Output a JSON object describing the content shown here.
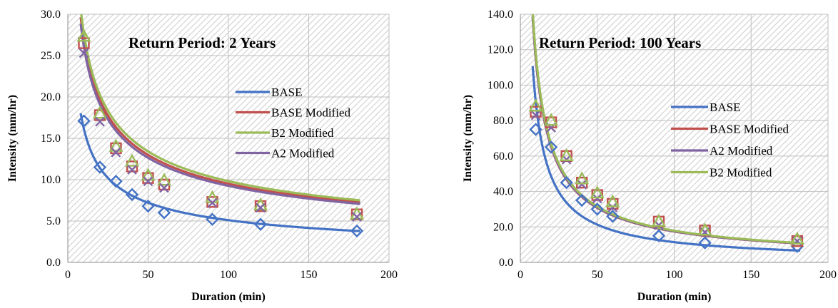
{
  "chart_data": [
    {
      "type": "scatter",
      "title": "Return Period: 2 Years",
      "xlabel": "Duration (min)",
      "ylabel": "Intensity (mm/hr)",
      "xlim": [
        0,
        200
      ],
      "ylim": [
        0,
        30
      ],
      "xticks": [
        "0",
        "50",
        "100",
        "150",
        "200"
      ],
      "yticks": [
        "0.0",
        "5.0",
        "10.0",
        "15.0",
        "20.0",
        "25.0",
        "30.0"
      ],
      "grid": true,
      "legend_position": "right",
      "x": [
        10,
        20,
        30,
        40,
        50,
        60,
        90,
        120,
        180
      ],
      "series": [
        {
          "name": "BASE",
          "color": "#4472C4",
          "marker": "diamond",
          "values": [
            17.1,
            11.5,
            9.8,
            8.2,
            6.8,
            6.0,
            5.2,
            4.6,
            3.8
          ],
          "trend": {
            "a": 51.0,
            "b": 0.5
          }
        },
        {
          "name": "BASE Modified",
          "color": "#C0504D",
          "marker": "square",
          "values": [
            26.5,
            17.8,
            13.8,
            11.6,
            10.2,
            9.4,
            7.3,
            6.8,
            5.8
          ],
          "trend": {
            "a": 75.5,
            "b": 0.45
          }
        },
        {
          "name": "B2 Modified",
          "color": "#9BBB59",
          "marker": "triangle",
          "values": [
            27.3,
            18.0,
            14.0,
            12.2,
            10.5,
            9.9,
            7.8,
            6.9,
            5.8
          ],
          "trend": {
            "a": 78.0,
            "b": 0.45
          }
        },
        {
          "name": "A2 Modified",
          "color": "#8064A2",
          "marker": "x",
          "values": [
            25.3,
            17.0,
            13.3,
            11.2,
            9.8,
            9.0,
            7.2,
            6.6,
            5.5
          ],
          "trend": {
            "a": 73.5,
            "b": 0.45
          }
        }
      ]
    },
    {
      "type": "scatter",
      "title": "Return Period: 100 Years",
      "xlabel": "Duration (min)",
      "ylabel": "Intensity (mm/hr)",
      "xlim": [
        0,
        200
      ],
      "ylim": [
        0,
        140
      ],
      "xticks": [
        "0",
        "50",
        "100",
        "150",
        "200"
      ],
      "yticks": [
        "0.0",
        "20.0",
        "40.0",
        "60.0",
        "80.0",
        "100.0",
        "120.0",
        "140.0"
      ],
      "grid": true,
      "legend_position": "right",
      "x": [
        10,
        20,
        30,
        40,
        50,
        60,
        90,
        120,
        180
      ],
      "series": [
        {
          "name": "BASE",
          "color": "#4472C4",
          "marker": "diamond",
          "values": [
            75,
            65,
            45,
            35,
            30,
            26,
            15,
            11,
            9
          ],
          "trend": {
            "a": 720,
            "b": 0.9
          }
        },
        {
          "name": "BASE Modified",
          "color": "#C0504D",
          "marker": "square",
          "values": [
            85,
            79,
            60,
            45,
            38,
            33,
            23,
            18,
            12
          ],
          "trend": {
            "a": 760,
            "b": 0.82
          }
        },
        {
          "name": "A2 Modified",
          "color": "#8064A2",
          "marker": "x",
          "values": [
            83,
            76,
            58,
            44,
            36,
            31,
            21,
            17,
            12
          ],
          "trend": {
            "a": 765,
            "b": 0.82
          }
        },
        {
          "name": "B2 Modified",
          "color": "#9BBB59",
          "marker": "triangle",
          "values": [
            88,
            80,
            60,
            47,
            39,
            34,
            23,
            18,
            13
          ],
          "trend": {
            "a": 780,
            "b": 0.82
          }
        }
      ]
    }
  ]
}
